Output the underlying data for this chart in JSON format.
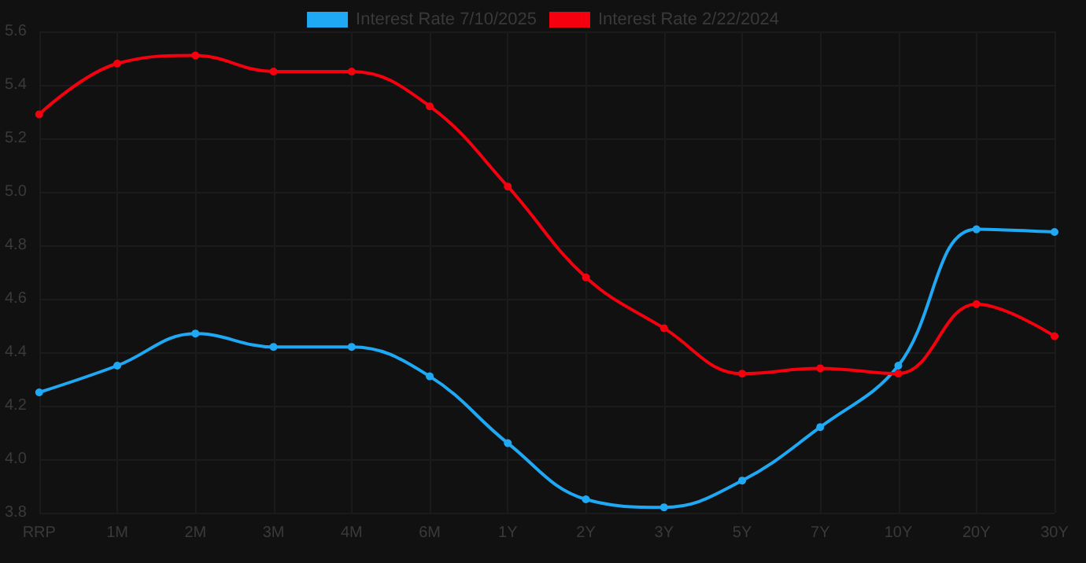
{
  "chart_data": {
    "type": "line",
    "categories": [
      "RRP",
      "1M",
      "2M",
      "3M",
      "4M",
      "6M",
      "1Y",
      "2Y",
      "3Y",
      "5Y",
      "7Y",
      "10Y",
      "20Y",
      "30Y"
    ],
    "series": [
      {
        "name": "Interest Rate 7/10/2025",
        "color": "#1fa9f5",
        "values": [
          4.25,
          4.35,
          4.47,
          4.42,
          4.42,
          4.31,
          4.06,
          3.85,
          3.82,
          3.92,
          4.12,
          4.35,
          4.86,
          4.85
        ]
      },
      {
        "name": "Interest Rate 2/22/2024",
        "color": "#f5000f",
        "values": [
          5.29,
          5.48,
          5.51,
          5.45,
          5.45,
          5.32,
          5.02,
          4.68,
          4.49,
          4.32,
          4.34,
          4.32,
          4.58,
          4.46
        ]
      }
    ],
    "ylim": [
      3.8,
      5.6
    ],
    "yticks": [
      3.8,
      {
        "value": 4,
        "label": "4.0"
      },
      4.2,
      4.4,
      4.6,
      4.8,
      {
        "value": 5,
        "label": "5.0"
      },
      5.2,
      5.4,
      5.6
    ],
    "grid": true,
    "legend": "top",
    "marker": "circle",
    "line_style": "solid"
  }
}
